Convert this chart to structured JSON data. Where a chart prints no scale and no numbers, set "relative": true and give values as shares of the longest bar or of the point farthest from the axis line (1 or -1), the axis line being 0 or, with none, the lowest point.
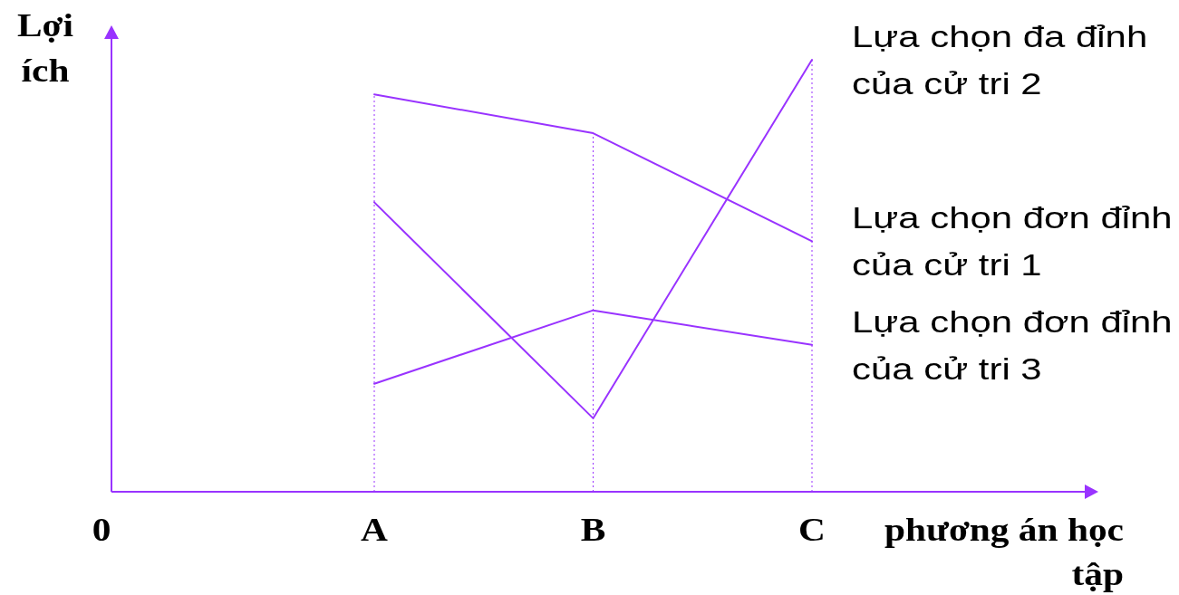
{
  "chart_data": {
    "type": "line",
    "relative": true,
    "xlabel": "phương án học tập",
    "ylabel": "Lợi ích",
    "annotations": [
      "0"
    ],
    "categories": [
      "A",
      "B",
      "C"
    ],
    "grid": "x",
    "line_style": "solid",
    "series": [
      {
        "name": "Lựa chọn đa đỉnh của cử tri 2",
        "color": "#9933ff",
        "values": [
          0.67,
          0.17,
          1
        ]
      },
      {
        "name": "Lựa chọn đơn đỉnh của cử tri 1",
        "color": "#9933ff",
        "values": [
          0.92,
          0.83,
          0.58
        ]
      },
      {
        "name": "Lựa chọn đơn đỉnh của cử tri 3",
        "color": "#9933ff",
        "values": [
          0.25,
          0.42,
          0.34
        ]
      }
    ]
  }
}
